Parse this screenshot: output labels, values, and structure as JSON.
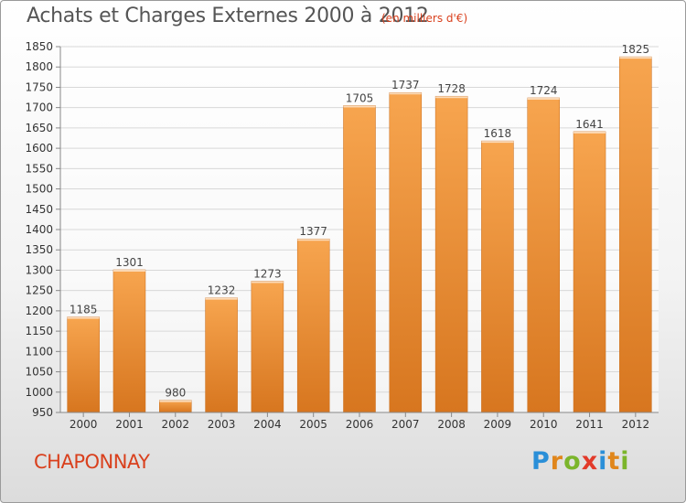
{
  "header": {
    "title": "Achats et Charges Externes 2000 à 2012",
    "subtitle": "(en milliers d'€)"
  },
  "footer": {
    "town": "CHAPONNAY",
    "logo_letters": [
      {
        "ch": "P",
        "color": "#2a8fd8"
      },
      {
        "ch": "r",
        "color": "#e0861b"
      },
      {
        "ch": "o",
        "color": "#7bb52b"
      },
      {
        "ch": "x",
        "color": "#e23a2a"
      },
      {
        "ch": "i",
        "color": "#2a8fd8"
      },
      {
        "ch": "t",
        "color": "#e0861b"
      },
      {
        "ch": "i",
        "color": "#7bb52b"
      }
    ]
  },
  "chart_data": {
    "type": "bar",
    "categories": [
      "2000",
      "2001",
      "2002",
      "2003",
      "2004",
      "2005",
      "2006",
      "2007",
      "2008",
      "2009",
      "2010",
      "2011",
      "2012"
    ],
    "values": [
      1185,
      1301,
      980,
      1232,
      1273,
      1377,
      1705,
      1737,
      1728,
      1618,
      1724,
      1641,
      1825
    ],
    "ylim": [
      950,
      1850
    ],
    "yticks": [
      950,
      1000,
      1050,
      1100,
      1150,
      1200,
      1250,
      1300,
      1350,
      1400,
      1450,
      1500,
      1550,
      1600,
      1650,
      1700,
      1750,
      1800,
      1850
    ],
    "grid": true,
    "colors": {
      "bar_light": "#f7a54f",
      "bar_dark": "#d7761f",
      "grid": "#d8d8d8",
      "axis": "#888888"
    }
  }
}
